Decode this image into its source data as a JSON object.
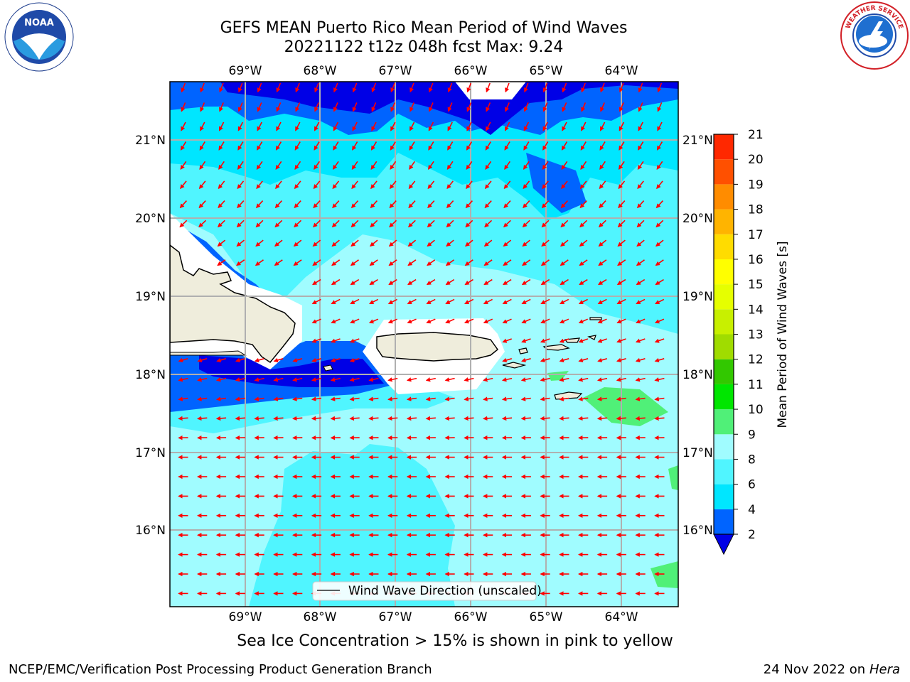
{
  "header": {
    "title_line1": "GEFS MEAN Puerto Rico Mean Period of Wind Waves",
    "title_line2": "20221122 t12z 048h fcst   Max: 9.24"
  },
  "logos": {
    "left": "noaa-logo",
    "right": "national-weather-service-logo"
  },
  "map": {
    "lon_labels": [
      "69°W",
      "68°W",
      "67°W",
      "66°W",
      "65°W",
      "64°W"
    ],
    "lat_labels": [
      "21°N",
      "20°N",
      "19°N",
      "18°N",
      "17°N",
      "16°N"
    ],
    "legend_label": "Wind Wave Direction (unscaled)",
    "arrow_color": "#ff0000",
    "land_color": "#efeddc"
  },
  "colorbar": {
    "label": "Mean Period of Wind Waves [s]",
    "ticks": [
      "2",
      "4",
      "6",
      "8",
      "9",
      "10",
      "11",
      "12",
      "13",
      "14",
      "15",
      "16",
      "17",
      "18",
      "19",
      "20",
      "21"
    ],
    "colors": [
      "#0064ff",
      "#00e6ff",
      "#50f5ff",
      "#a0fcff",
      "#50f078",
      "#00e600",
      "#32c800",
      "#a0dc00",
      "#c8f000",
      "#e6ff00",
      "#ffff00",
      "#ffdc00",
      "#ffb400",
      "#ff8c00",
      "#ff5000",
      "#ff2800",
      "#ff0000"
    ],
    "underflow_color": "#0000e6"
  },
  "subtitle": "Sea Ice Concentration > 15% is shown in pink to yellow",
  "footer": {
    "left": "NCEP/EMC/Verification Post Processing Product Generation Branch",
    "right_date": "24 Nov 2022 on",
    "right_host": "Hera"
  }
}
